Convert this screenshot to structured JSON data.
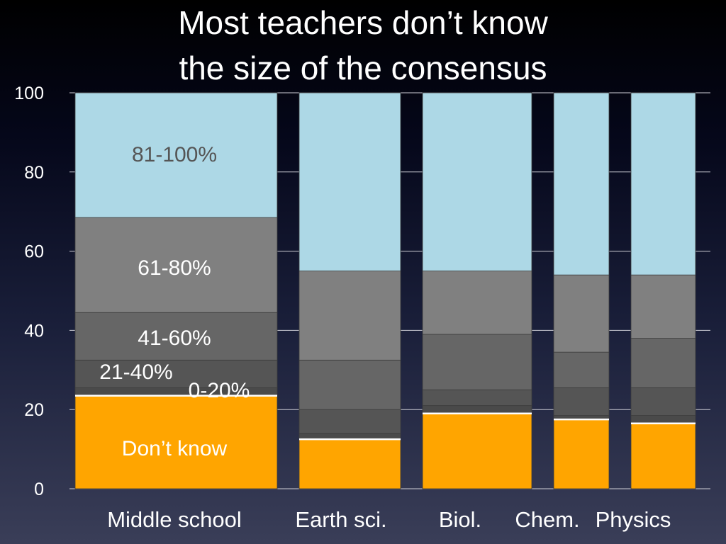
{
  "chart_data": {
    "type": "bar",
    "stacked": true,
    "title_lines": [
      "Most teachers don’t know",
      "the size of the consensus"
    ],
    "categories": [
      "Middle school",
      "Earth sci.",
      "Biol.",
      "Chem.",
      "Physics"
    ],
    "ylim": [
      0,
      100
    ],
    "yticks": [
      0,
      20,
      40,
      60,
      80,
      100
    ],
    "grid": true,
    "series": [
      {
        "name": "Don’t know",
        "color": "#ffa500",
        "values": [
          23.5,
          12.5,
          19,
          17.5,
          16.5
        ]
      },
      {
        "name": "0-20%",
        "color": "#4a4a4a",
        "values": [
          2,
          1.5,
          2,
          1,
          2
        ]
      },
      {
        "name": "21-40%",
        "color": "#555555",
        "values": [
          7,
          6,
          4,
          7,
          7
        ]
      },
      {
        "name": "41-60%",
        "color": "#666666",
        "values": [
          12,
          12.5,
          14,
          9,
          12.5
        ]
      },
      {
        "name": "61-80%",
        "color": "#808080",
        "values": [
          24,
          22.5,
          16,
          19.5,
          16
        ]
      },
      {
        "name": "81-100%",
        "color": "#add8e6",
        "values": [
          31.5,
          45,
          45,
          46,
          46
        ]
      }
    ],
    "segment_labels": [
      {
        "series": "81-100%",
        "text": "81-100%"
      },
      {
        "series": "61-80%",
        "text": "61-80%"
      },
      {
        "series": "41-60%",
        "text": "41-60%"
      },
      {
        "series": "21-40%",
        "text": "21-40%"
      },
      {
        "series": "0-20%",
        "text": "0-20%"
      },
      {
        "series": "Don’t know",
        "text": "Don’t know"
      }
    ]
  }
}
